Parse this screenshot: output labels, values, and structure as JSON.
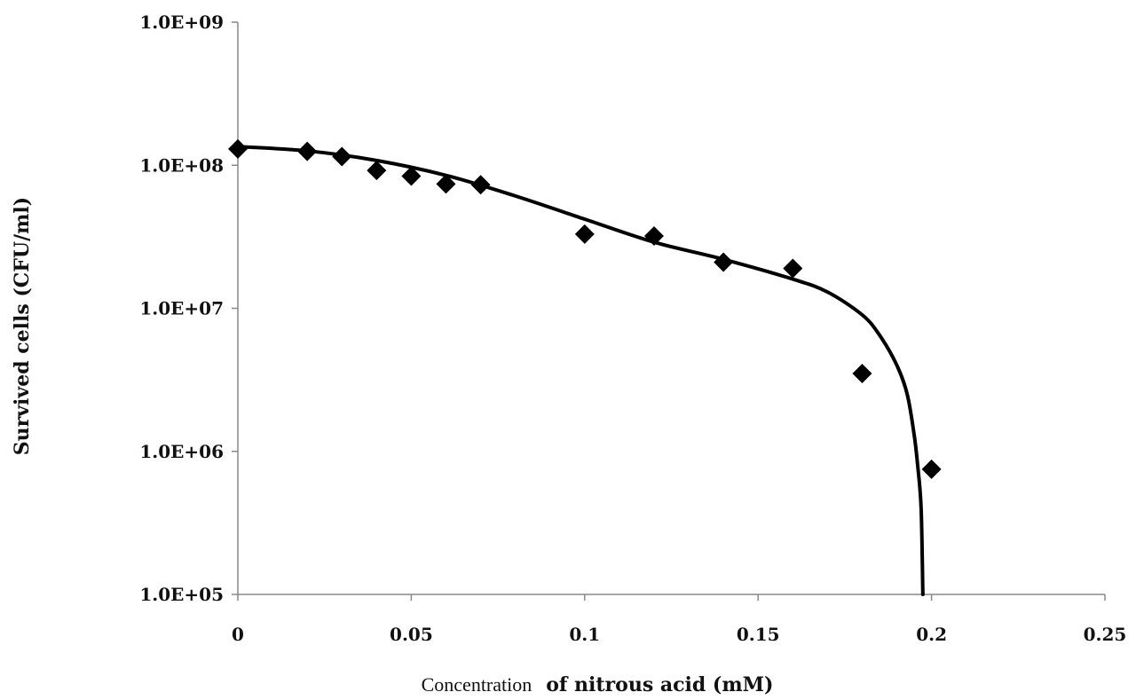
{
  "chart_data": {
    "type": "scatter",
    "title": "",
    "xlabel_part1": "Concentration",
    "xlabel_part2": "of nitrous acid (mM)",
    "ylabel": "Survived cells  (CFU/ml)",
    "xlim": [
      0,
      0.25
    ],
    "ylim": [
      100000,
      1000000000
    ],
    "yscale": "log",
    "grid": false,
    "legend": "none",
    "x_ticks": [
      0,
      0.05,
      0.1,
      0.15,
      0.2,
      0.25
    ],
    "x_tick_labels": [
      "0",
      "0.05",
      "0.1",
      "0.15",
      "0.2",
      "0.25"
    ],
    "y_ticks": [
      100000,
      1000000,
      10000000,
      100000000,
      1000000000
    ],
    "y_tick_labels": [
      "1.0E+05",
      "1.0E+06",
      "1.0E+07",
      "1.0E+08",
      "1.0E+09"
    ],
    "series": [
      {
        "marker": "diamond",
        "color": "#000000",
        "x": [
          0,
          0.02,
          0.03,
          0.04,
          0.05,
          0.06,
          0.07,
          0.1,
          0.12,
          0.14,
          0.16,
          0.18,
          0.2
        ],
        "y": [
          130000000,
          125000000,
          115000000,
          92000000,
          84000000,
          74000000,
          73000000,
          33000000,
          32000000,
          21000000,
          19000000,
          3500000,
          750000
        ]
      },
      {
        "type": "line",
        "color": "#000000",
        "x": [
          0,
          0.02,
          0.04,
          0.06,
          0.08,
          0.1,
          0.12,
          0.14,
          0.16,
          0.17,
          0.18,
          0.185,
          0.19,
          0.193,
          0.195,
          0.196,
          0.197,
          0.1975
        ],
        "y": [
          135000000,
          126000000,
          108000000,
          85000000,
          61000000,
          42000000,
          29000000,
          22000000,
          16000000,
          13000000,
          9000000,
          6500000,
          4000000,
          2500000,
          1300000,
          800000,
          400000,
          100000
        ]
      }
    ]
  }
}
